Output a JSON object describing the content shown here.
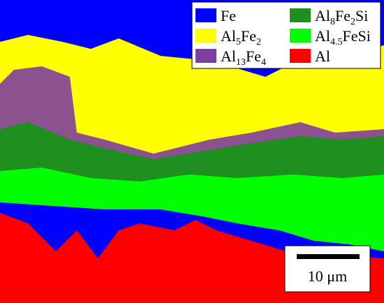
{
  "legend": [
    {
      "color": "#0000ff",
      "parts": [
        {
          "text": "Fe"
        }
      ]
    },
    {
      "color": "#1f8f1f",
      "parts": [
        {
          "text": "Al"
        },
        {
          "text": "8",
          "sub": true
        },
        {
          "text": "Fe"
        },
        {
          "text": "2",
          "sub": true
        },
        {
          "text": "Si"
        }
      ]
    },
    {
      "color": "#ffff00",
      "parts": [
        {
          "text": "Al"
        },
        {
          "text": "5",
          "sub": true
        },
        {
          "text": "Fe"
        },
        {
          "text": "2",
          "sub": true
        }
      ]
    },
    {
      "color": "#00ff00",
      "parts": [
        {
          "text": "Al"
        },
        {
          "text": "4.5",
          "sub": true
        },
        {
          "text": "FeSi"
        }
      ]
    },
    {
      "color": "#7f3f9f",
      "parts": [
        {
          "text": "Al"
        },
        {
          "text": "13",
          "sub": true
        },
        {
          "text": "Fe"
        },
        {
          "text": "4",
          "sub": true
        }
      ]
    },
    {
      "color": "#ff0000",
      "parts": [
        {
          "text": "Al"
        }
      ]
    }
  ],
  "scale_bar": {
    "label": "10 μm"
  }
}
